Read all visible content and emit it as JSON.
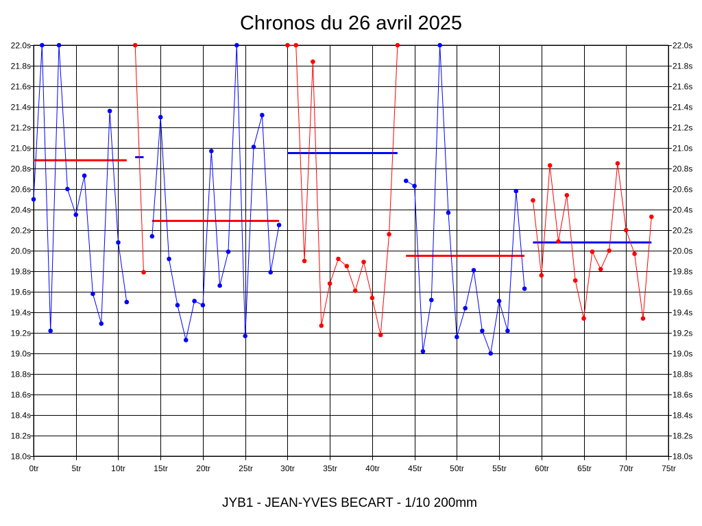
{
  "chart_data": {
    "type": "line",
    "title": "Chronos du 26 avril 2025",
    "subtitle": "JYB1 - JEAN-YVES BECART - 1/10 200mm",
    "xlim": [
      0,
      75
    ],
    "ylim": [
      18.0,
      22.0
    ],
    "x_tick_labels": [
      "0tr",
      "5tr",
      "10tr",
      "15tr",
      "20tr",
      "25tr",
      "30tr",
      "35tr",
      "40tr",
      "45tr",
      "50tr",
      "55tr",
      "60tr",
      "65tr",
      "70tr",
      "75tr"
    ],
    "x_tick_values": [
      0,
      5,
      10,
      15,
      20,
      25,
      30,
      35,
      40,
      45,
      50,
      55,
      60,
      65,
      70,
      75
    ],
    "y_tick_labels": [
      "18.0s",
      "18.2s",
      "18.4s",
      "18.6s",
      "18.8s",
      "19.0s",
      "19.2s",
      "19.4s",
      "19.6s",
      "19.8s",
      "20.0s",
      "20.2s",
      "20.4s",
      "20.6s",
      "20.8s",
      "21.0s",
      "21.2s",
      "21.4s",
      "21.6s",
      "21.8s",
      "22.0s"
    ],
    "y_tick_values": [
      18.0,
      18.2,
      18.4,
      18.6,
      18.8,
      19.0,
      19.2,
      19.4,
      19.6,
      19.8,
      20.0,
      20.2,
      20.4,
      20.6,
      20.8,
      21.0,
      21.2,
      21.4,
      21.6,
      21.8,
      22.0
    ],
    "grid": true,
    "right_axis_labels": true,
    "series": [
      {
        "color": "#0000ff",
        "avg_color": "#ff0000",
        "avg": 20.88,
        "points": [
          [
            0,
            20.5
          ],
          [
            1,
            22.0
          ],
          [
            2,
            19.22
          ],
          [
            3,
            22.0
          ],
          [
            4,
            20.6
          ],
          [
            5,
            20.35
          ],
          [
            6,
            20.73
          ],
          [
            7,
            19.58
          ],
          [
            8,
            19.29
          ],
          [
            9,
            21.36
          ],
          [
            10,
            20.08
          ],
          [
            11,
            19.5
          ]
        ]
      },
      {
        "color": "#ff0000",
        "avg_color": "#0000ff",
        "avg": 20.91,
        "points": [
          [
            12,
            22.0
          ],
          [
            13,
            19.79
          ]
        ]
      },
      {
        "color": "#0000ff",
        "avg_color": "#ff0000",
        "avg": 20.29,
        "points": [
          [
            14,
            20.14
          ],
          [
            15,
            21.3
          ],
          [
            16,
            19.92
          ],
          [
            17,
            19.47
          ],
          [
            18,
            19.13
          ],
          [
            19,
            19.51
          ],
          [
            20,
            19.47
          ],
          [
            21,
            20.97
          ],
          [
            22,
            19.66
          ],
          [
            23,
            19.99
          ],
          [
            24,
            22.0
          ],
          [
            25,
            19.17
          ],
          [
            26,
            21.01
          ],
          [
            27,
            21.32
          ],
          [
            28,
            19.79
          ],
          [
            29,
            20.25
          ]
        ]
      },
      {
        "color": "#ff0000",
        "avg_color": "#0000ff",
        "avg": 20.95,
        "points": [
          [
            30,
            22.0
          ],
          [
            31,
            22.0
          ],
          [
            32,
            19.9
          ],
          [
            33,
            21.84
          ],
          [
            34,
            19.27
          ],
          [
            35,
            19.68
          ],
          [
            36,
            19.92
          ],
          [
            37,
            19.85
          ],
          [
            38,
            19.61
          ],
          [
            39,
            19.89
          ],
          [
            40,
            19.54
          ],
          [
            41,
            19.18
          ],
          [
            42,
            20.16
          ],
          [
            43,
            22.0
          ]
        ]
      },
      {
        "color": "#0000ff",
        "avg_color": "#ff0000",
        "avg": 19.95,
        "points": [
          [
            44,
            20.68
          ],
          [
            45,
            20.63
          ],
          [
            46,
            19.02
          ],
          [
            47,
            19.52
          ],
          [
            48,
            22.0
          ],
          [
            49,
            20.37
          ],
          [
            50,
            19.16
          ],
          [
            51,
            19.44
          ],
          [
            52,
            19.81
          ],
          [
            53,
            19.22
          ],
          [
            54,
            19.0
          ],
          [
            55,
            19.51
          ],
          [
            56,
            19.22
          ],
          [
            57,
            20.58
          ],
          [
            58,
            19.63
          ]
        ]
      },
      {
        "color": "#ff0000",
        "avg_color": "#0000ff",
        "avg": 20.08,
        "points": [
          [
            59,
            20.49
          ],
          [
            60,
            19.76
          ],
          [
            61,
            20.83
          ],
          [
            62,
            20.09
          ],
          [
            63,
            20.54
          ],
          [
            64,
            19.71
          ],
          [
            65,
            19.34
          ],
          [
            66,
            19.99
          ],
          [
            67,
            19.82
          ],
          [
            68,
            20.0
          ],
          [
            69,
            20.85
          ],
          [
            70,
            20.2
          ],
          [
            71,
            19.97
          ],
          [
            72,
            19.34
          ],
          [
            73,
            20.33
          ]
        ]
      }
    ]
  }
}
